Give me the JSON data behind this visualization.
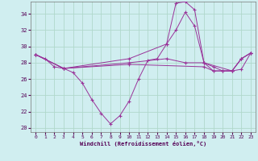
{
  "xlabel": "Windchill (Refroidissement éolien,°C)",
  "bg_color": "#d0eef0",
  "grid_color": "#b0d8cc",
  "line_color": "#993399",
  "xlim": [
    -0.5,
    23.5
  ],
  "ylim": [
    19.5,
    35.5
  ],
  "yticks": [
    20,
    22,
    24,
    26,
    28,
    30,
    32,
    34
  ],
  "xticks": [
    0,
    1,
    2,
    3,
    4,
    5,
    6,
    7,
    8,
    9,
    10,
    11,
    12,
    13,
    14,
    15,
    16,
    17,
    18,
    19,
    20,
    21,
    22,
    23
  ],
  "series": [
    {
      "x": [
        0,
        1,
        2,
        3,
        4,
        5,
        6,
        7,
        8,
        9,
        10,
        11,
        12,
        13,
        14,
        15,
        16,
        17,
        18,
        19,
        20,
        21,
        22,
        23
      ],
      "y": [
        29.0,
        28.5,
        27.5,
        27.3,
        26.8,
        25.5,
        23.5,
        21.8,
        20.5,
        21.5,
        23.3,
        26.0,
        28.3,
        28.5,
        30.3,
        35.3,
        35.5,
        34.5,
        28.0,
        27.0,
        27.0,
        27.0,
        28.5,
        29.2
      ]
    },
    {
      "x": [
        0,
        3,
        10,
        14,
        15,
        16,
        17,
        18,
        21,
        22,
        23
      ],
      "y": [
        29.0,
        27.3,
        28.5,
        30.3,
        32.0,
        34.2,
        32.5,
        28.0,
        27.0,
        28.5,
        29.2
      ]
    },
    {
      "x": [
        0,
        3,
        10,
        14,
        16,
        18,
        19,
        20,
        21,
        22,
        23
      ],
      "y": [
        29.0,
        27.3,
        28.0,
        28.5,
        28.0,
        28.0,
        27.5,
        27.0,
        27.0,
        28.5,
        29.2
      ]
    },
    {
      "x": [
        0,
        3,
        10,
        18,
        19,
        20,
        21,
        22,
        23
      ],
      "y": [
        29.0,
        27.3,
        27.8,
        27.5,
        27.0,
        27.0,
        27.0,
        27.2,
        29.2
      ]
    }
  ]
}
